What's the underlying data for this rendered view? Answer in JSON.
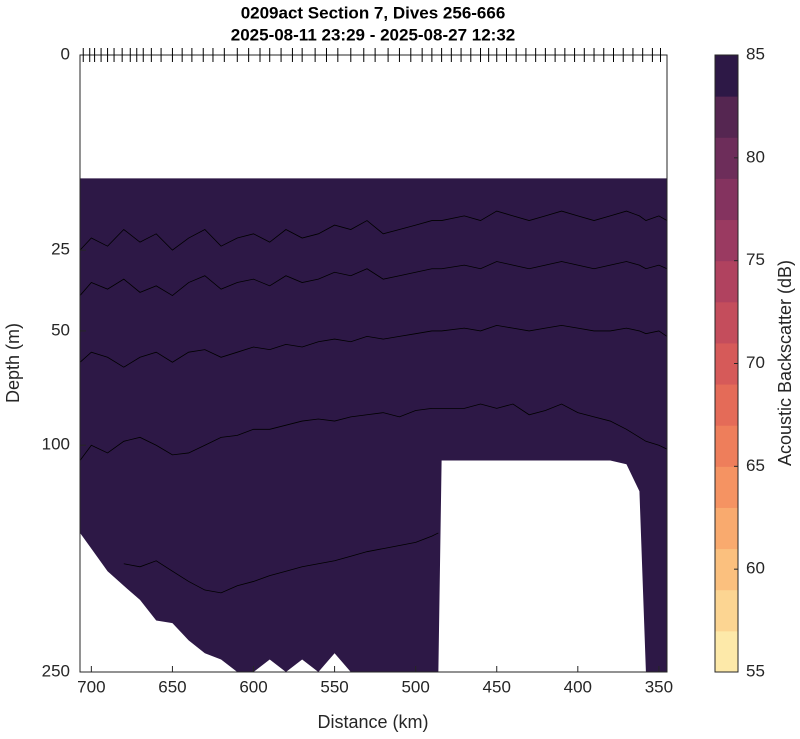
{
  "chart_data": {
    "type": "contour",
    "title": "0209act Section 7, Dives 256-666",
    "subtitle": "2025-08-11 23:29 - 2025-08-27 12:32",
    "x_label": "Distance (km)",
    "y_label": "Depth (m)",
    "xlim": [
      707,
      345
    ],
    "xticks": [
      700,
      650,
      600,
      550,
      500,
      450,
      400,
      350
    ],
    "ylim": [
      0,
      250
    ],
    "yticks": [
      0,
      25,
      50,
      100,
      250
    ],
    "yscale": "sqrt",
    "y_reversed": true,
    "x": [
      707,
      700,
      690,
      680,
      670,
      660,
      650,
      640,
      630,
      620,
      610,
      600,
      590,
      580,
      570,
      560,
      550,
      540,
      530,
      520,
      510,
      500,
      490,
      486,
      484,
      470,
      460,
      450,
      440,
      430,
      420,
      410,
      400,
      390,
      380,
      370,
      362,
      358,
      350,
      345
    ],
    "data_top": 10,
    "bottom_depth": [
      150,
      160,
      175,
      185,
      195,
      210,
      212,
      225,
      235,
      240,
      250,
      250,
      240,
      250,
      240,
      250,
      235,
      250,
      250,
      250,
      250,
      250,
      250,
      250,
      108,
      108,
      108,
      108,
      108,
      108,
      108,
      108,
      108,
      108,
      108,
      110,
      125,
      250,
      250,
      250
    ],
    "fill_color": "#2d1846",
    "contours": [
      {
        "color": "#000000",
        "values": [
          25,
          22,
          24,
          20,
          23,
          21,
          25,
          22,
          20,
          24,
          22,
          21,
          23,
          20,
          22,
          21,
          19,
          20,
          18,
          21,
          20,
          19,
          18,
          18,
          18,
          17,
          18,
          16,
          17,
          18,
          17,
          16,
          17,
          18,
          17,
          16,
          17,
          18,
          17,
          18
        ]
      },
      {
        "color": "#000000",
        "values": [
          38,
          34,
          36,
          33,
          37,
          35,
          38,
          34,
          32,
          36,
          34,
          33,
          35,
          32,
          34,
          33,
          31,
          32,
          30,
          33,
          32,
          31,
          30,
          30,
          30,
          29,
          30,
          28,
          29,
          30,
          29,
          28,
          29,
          30,
          29,
          28,
          29,
          30,
          29,
          30
        ]
      },
      {
        "color": "#000000",
        "values": [
          62,
          58,
          60,
          64,
          60,
          58,
          62,
          58,
          57,
          60,
          58,
          56,
          57,
          55,
          56,
          54,
          53,
          54,
          52,
          53,
          52,
          51,
          50,
          50,
          50,
          49,
          50,
          48,
          49,
          50,
          49,
          48,
          49,
          50,
          50,
          49,
          50,
          51,
          50,
          52
        ]
      },
      {
        "color": "#000000",
        "values": [
          108,
          100,
          104,
          98,
          96,
          100,
          105,
          104,
          100,
          96,
          95,
          92,
          92,
          90,
          88,
          87,
          88,
          86,
          85,
          84,
          86,
          83,
          82,
          82,
          82,
          82,
          80,
          82,
          80,
          85,
          83,
          80,
          84,
          86,
          88,
          92,
          96,
          98,
          100,
          102
        ]
      },
      {
        "color": "#000000",
        "values": [
          null,
          null,
          null,
          170,
          172,
          168,
          175,
          182,
          188,
          190,
          185,
          182,
          178,
          175,
          172,
          170,
          168,
          165,
          162,
          160,
          158,
          156,
          152,
          150,
          null,
          null,
          null,
          null,
          null,
          null,
          null,
          null,
          null,
          null,
          null,
          null,
          null,
          null,
          null,
          null
        ]
      }
    ],
    "dive_positions": [
      705,
      701,
      698,
      694,
      690,
      686,
      681,
      676,
      672,
      668,
      663,
      657,
      650,
      644,
      638,
      631,
      625,
      618,
      610,
      603,
      596,
      590,
      583,
      576,
      570,
      562,
      555,
      548,
      540,
      532,
      525,
      517,
      510,
      503,
      496,
      490,
      484,
      478,
      472,
      466,
      460,
      455,
      450,
      444,
      438,
      432,
      426,
      420,
      414,
      408,
      402,
      396,
      390,
      384,
      378,
      372,
      366,
      360,
      354,
      349
    ],
    "colorbar": {
      "label": "Acoustic Backscatter (dB)",
      "lim": [
        55,
        85
      ],
      "ticks": [
        55,
        60,
        65,
        70,
        75,
        80,
        85
      ],
      "colors": [
        "#fde9a9",
        "#fcd592",
        "#fbc07e",
        "#f9aa6e",
        "#f59362",
        "#ee7e5b",
        "#e46b58",
        "#d65a59",
        "#c44d5c",
        "#b0425f",
        "#9a3a61",
        "#84335f",
        "#6d2d5a",
        "#552651",
        "#2d1846"
      ]
    }
  }
}
